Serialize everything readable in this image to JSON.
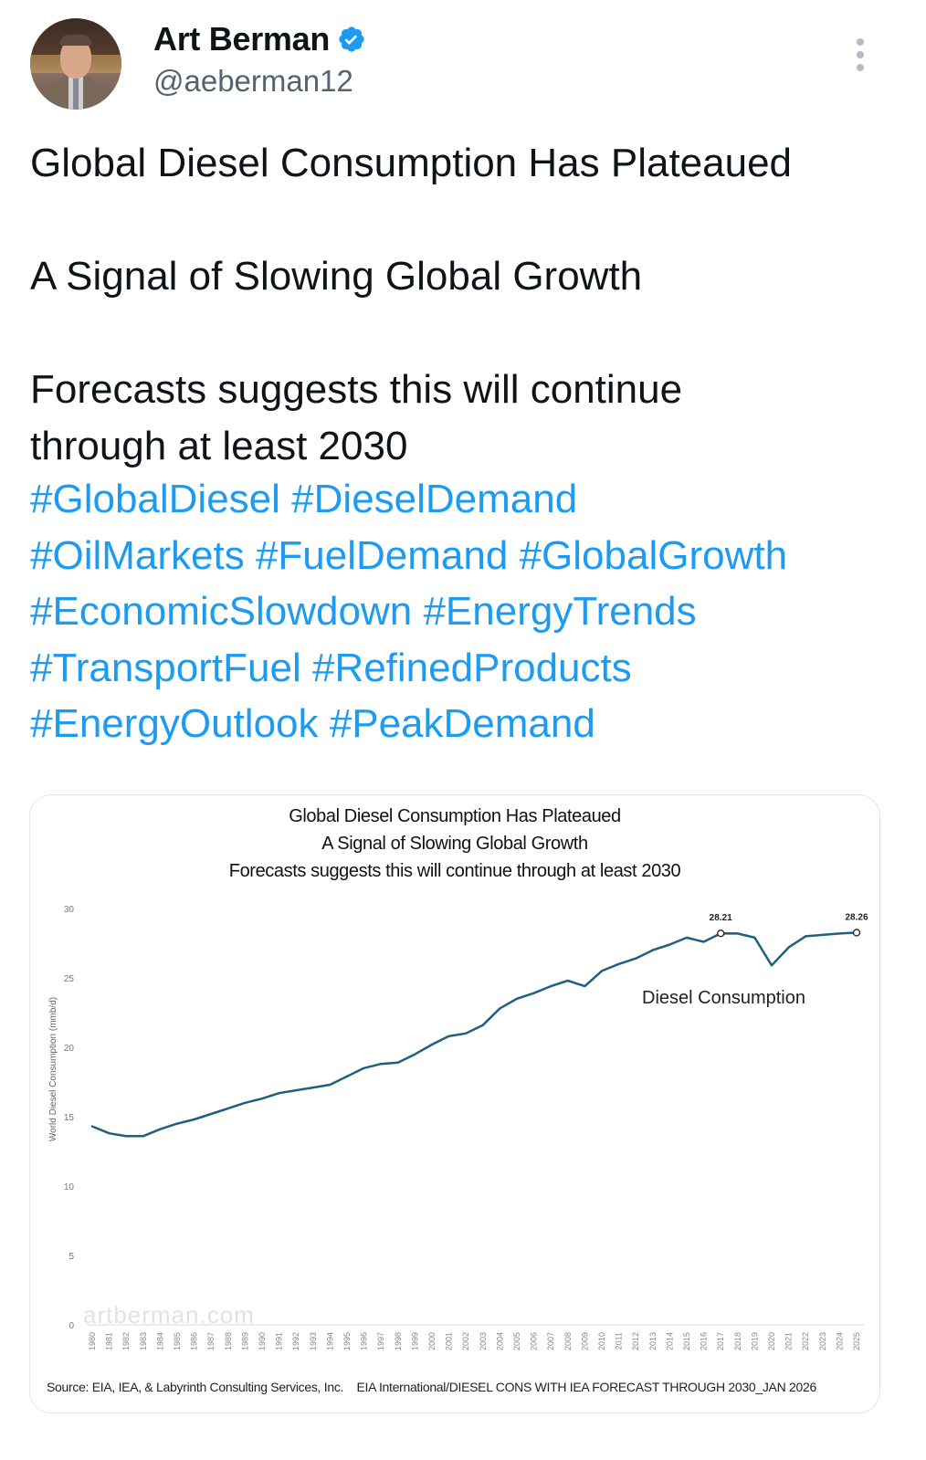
{
  "author": {
    "display_name": "Art Berman",
    "handle": "@aeberman12",
    "verified": true,
    "verified_icon": "verified-badge-icon",
    "more_icon": "more-vertical-icon"
  },
  "tweet": {
    "lines": [
      "Global Diesel Consumption Has Plateaued",
      "A Signal of Slowing Global Growth",
      "Forecasts suggests this will continue",
      "through at least 2030"
    ],
    "hashtags": [
      "#GlobalDiesel",
      "#DieselDemand",
      "#OilMarkets",
      "#FuelDemand",
      "#GlobalGrowth",
      "#EconomicSlowdown",
      "#EnergyTrends",
      "#TransportFuel",
      "#RefinedProducts",
      "#EnergyOutlook",
      "#PeakDemand"
    ]
  },
  "colors": {
    "hashtag": "#1d9bf0",
    "line": "#1f5f80",
    "handle": "#536471"
  },
  "chart_data": {
    "type": "line",
    "title": "Global Diesel Consumption Has Plateaued",
    "subtitle_1": "A Signal of Slowing Global Growth",
    "subtitle_2": "Forecasts suggests this will continue through at least 2030",
    "xlabel": "",
    "ylabel": "World Diesel Consumption (mmb/d)",
    "ylim": [
      0,
      30
    ],
    "yticks": [
      0,
      5,
      10,
      15,
      20,
      25,
      30
    ],
    "grid": false,
    "watermark": "artberman.com",
    "x": [
      1980,
      1981,
      1982,
      1983,
      1984,
      1985,
      1986,
      1987,
      1988,
      1989,
      1990,
      1991,
      1992,
      1993,
      1994,
      1995,
      1996,
      1997,
      1998,
      1999,
      2000,
      2001,
      2002,
      2003,
      2004,
      2005,
      2006,
      2007,
      2008,
      2009,
      2010,
      2011,
      2012,
      2013,
      2014,
      2015,
      2016,
      2017,
      2018,
      2019,
      2020,
      2021,
      2022,
      2023,
      2024,
      2025
    ],
    "series": [
      {
        "name": "Diesel Consumption",
        "values": [
          14.3,
          13.8,
          13.6,
          13.6,
          14.1,
          14.5,
          14.8,
          15.2,
          15.6,
          16.0,
          16.3,
          16.7,
          16.9,
          17.1,
          17.3,
          17.9,
          18.5,
          18.8,
          18.9,
          19.5,
          20.2,
          20.8,
          21.0,
          21.6,
          22.8,
          23.5,
          23.9,
          24.4,
          24.8,
          24.4,
          25.5,
          26.0,
          26.4,
          27.0,
          27.4,
          27.9,
          27.6,
          28.21,
          28.2,
          27.9,
          25.9,
          27.2,
          28.0,
          28.1,
          28.2,
          28.26
        ]
      }
    ],
    "annotations": [
      {
        "x": 2017,
        "label": "28.21"
      },
      {
        "x": 2025,
        "label": "28.26"
      }
    ],
    "series_label": "Diesel Consumption",
    "source": "Source: EIA, IEA, & Labyrinth Consulting Services, Inc.",
    "file_note": "EIA International/DIESEL CONS WITH IEA FORECAST THROUGH 2030_JAN 2026"
  }
}
